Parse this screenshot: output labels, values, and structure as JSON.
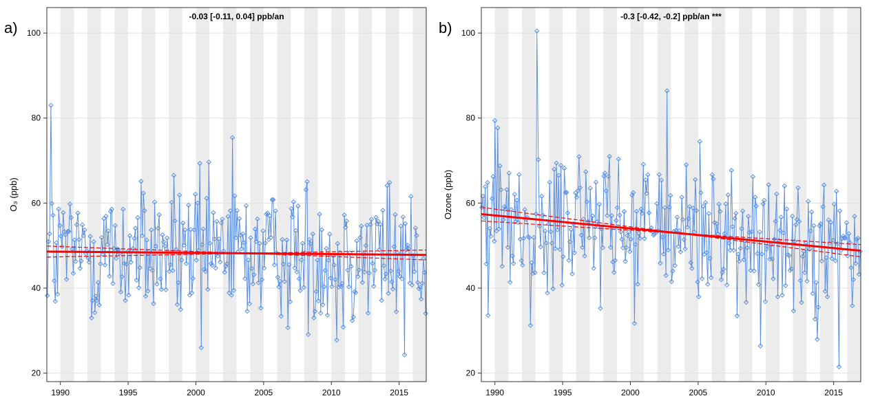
{
  "chart_data": [
    {
      "panel_label": "a)",
      "type": "line",
      "title": "-0.03 [-0.11, 0.04] ppb/an",
      "xlabel": "",
      "ylabel": "O₃ (ppb)",
      "xlim": [
        1989,
        2017
      ],
      "ylim": [
        18,
        106
      ],
      "xticks": [
        "1990",
        "1995",
        "2000",
        "2005",
        "2010",
        "2015"
      ],
      "yticks": [
        "20",
        "40",
        "60",
        "80",
        "100"
      ],
      "grid": true,
      "shaded_year_bands": true,
      "series_color": "#5b8fe0",
      "trend_color": "#ff0000",
      "trend": {
        "x": [
          1989,
          2017
        ],
        "y": [
          48.6,
          47.8
        ],
        "ci_width": 1.3
      },
      "highlights": [
        {
          "x": 1989.3,
          "y": 83.0
        },
        {
          "x": 2002.7,
          "y": 75.4
        },
        {
          "x": 2000.4,
          "y": 26.0
        },
        {
          "x": 2015.4,
          "y": 24.3
        },
        {
          "x": 2010.4,
          "y": 27.8
        },
        {
          "x": 1992.3,
          "y": 33.0
        }
      ]
    },
    {
      "panel_label": "b)",
      "type": "line",
      "title": "-0.3 [-0.42, -0.2] ppb/an ***",
      "xlabel": "",
      "ylabel": "Ozone (ppb)",
      "xlim": [
        1989,
        2017
      ],
      "ylim": [
        18,
        106
      ],
      "xticks": [
        "1990",
        "1995",
        "2000",
        "2005",
        "2010",
        "2015"
      ],
      "yticks": [
        "20",
        "40",
        "60",
        "80",
        "100"
      ],
      "grid": true,
      "shaded_year_bands": true,
      "series_color": "#5b8fe0",
      "trend_color": "#ff0000",
      "trend": {
        "x": [
          1989,
          2017
        ],
        "y": [
          57.4,
          48.8
        ],
        "ci_width": 1.6
      },
      "highlights": [
        {
          "x": 1993.1,
          "y": 100.5
        },
        {
          "x": 2002.7,
          "y": 86.4
        },
        {
          "x": 1990.0,
          "y": 79.4
        },
        {
          "x": 2015.4,
          "y": 21.5
        },
        {
          "x": 2009.6,
          "y": 26.4
        },
        {
          "x": 2000.3,
          "y": 31.7
        },
        {
          "x": 1989.5,
          "y": 33.6
        }
      ]
    }
  ]
}
